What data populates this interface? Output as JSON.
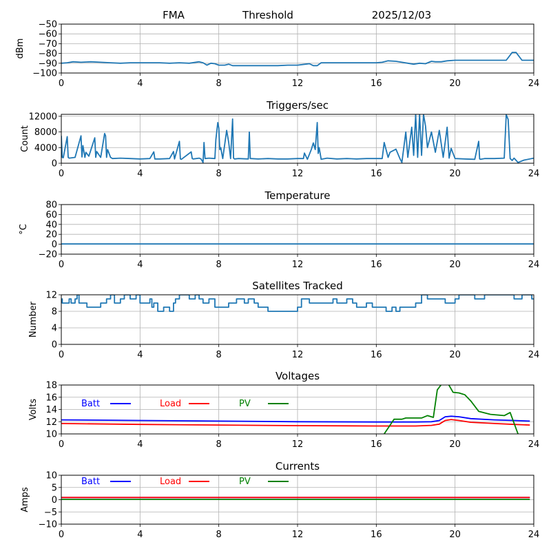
{
  "header": {
    "site": "FMA",
    "mode": "Threshold",
    "date": "2025/12/03"
  },
  "chart_data": [
    {
      "id": "signal",
      "type": "line",
      "title": "",
      "xlabel": "",
      "ylabel": "dBm",
      "xlim": [
        0,
        24
      ],
      "ylim": [
        -100,
        -50
      ],
      "xticks": [
        "0",
        "4",
        "8",
        "12",
        "16",
        "20",
        "24"
      ],
      "yticks": [
        "−50",
        "−60",
        "−70",
        "−80",
        "−90",
        "−100"
      ],
      "ytick_values": [
        -50,
        -60,
        -70,
        -80,
        -90,
        -100
      ],
      "grid": true,
      "series": [
        {
          "name": "signal",
          "color": "#1f77b4",
          "x": [
            0,
            0.3,
            0.6,
            1.0,
            1.5,
            2.0,
            2.5,
            3.0,
            3.5,
            4.0,
            4.5,
            5.0,
            5.5,
            6.0,
            6.5,
            7.0,
            7.2,
            7.4,
            7.6,
            7.8,
            8.0,
            8.3,
            8.5,
            8.7,
            9.0,
            9.5,
            10.0,
            10.5,
            11.0,
            11.5,
            12.0,
            12.4,
            12.6,
            12.8,
            13.0,
            13.2,
            13.5,
            14.0,
            14.5,
            15.0,
            15.5,
            16.0,
            16.3,
            16.6,
            17.0,
            17.3,
            17.6,
            17.9,
            18.2,
            18.5,
            18.8,
            19.0,
            19.3,
            19.6,
            20.0,
            20.5,
            21.0,
            21.5,
            22.0,
            22.6,
            22.9,
            23.1,
            23.4,
            23.7,
            24.0
          ],
          "y": [
            -90,
            -89.5,
            -88.5,
            -89,
            -88.5,
            -89,
            -89.5,
            -90,
            -89.5,
            -89.5,
            -89.5,
            -89.5,
            -90,
            -89.5,
            -90,
            -88.5,
            -89.5,
            -92,
            -90,
            -90.5,
            -92,
            -92,
            -91,
            -92.5,
            -92.5,
            -92.5,
            -92.5,
            -92.5,
            -92.5,
            -92,
            -92,
            -91,
            -90.5,
            -92.5,
            -92.5,
            -89.5,
            -89.5,
            -89.5,
            -89.5,
            -89.5,
            -89.5,
            -89.5,
            -89,
            -87.5,
            -88,
            -89,
            -90,
            -91,
            -90,
            -90.5,
            -88,
            -88.5,
            -88.5,
            -87.5,
            -87,
            -87,
            -87,
            -87,
            -87,
            -87,
            -79,
            -79,
            -87,
            -87,
            -87
          ]
        }
      ]
    },
    {
      "id": "triggers",
      "type": "line",
      "title": "Triggers/sec",
      "xlabel": "",
      "ylabel": "Count",
      "xlim": [
        0,
        24
      ],
      "ylim": [
        0,
        12500
      ],
      "xticks": [
        "0",
        "4",
        "8",
        "12",
        "16",
        "20",
        "24"
      ],
      "yticks": [
        "0",
        "4000",
        "8000",
        "12000"
      ],
      "ytick_values": [
        0,
        4000,
        8000,
        12000
      ],
      "grid": true,
      "series": [
        {
          "name": "triggers",
          "color": "#1f77b4",
          "x": [
            0,
            0.05,
            0.1,
            0.3,
            0.35,
            0.4,
            0.7,
            1.0,
            1.05,
            1.1,
            1.2,
            1.25,
            1.4,
            1.7,
            1.75,
            1.8,
            2.0,
            2.2,
            2.25,
            2.3,
            2.35,
            2.5,
            2.6,
            3.0,
            3.5,
            4.0,
            4.5,
            4.7,
            4.75,
            5.0,
            5.5,
            5.7,
            5.75,
            6.0,
            6.05,
            6.1,
            6.6,
            6.65,
            6.7,
            7.0,
            7.1,
            7.2,
            7.25,
            7.3,
            7.5,
            7.8,
            7.85,
            7.95,
            8.0,
            8.05,
            8.1,
            8.2,
            8.4,
            8.5,
            8.6,
            8.7,
            8.75,
            8.8,
            9.0,
            9.5,
            9.55,
            9.6,
            10.0,
            10.5,
            11.0,
            11.5,
            12.0,
            12.3,
            12.35,
            12.5,
            12.7,
            12.8,
            12.9,
            13.0,
            13.05,
            13.1,
            13.2,
            13.5,
            14.0,
            14.5,
            15.0,
            15.5,
            16.0,
            16.3,
            16.4,
            16.6,
            16.7,
            17.0,
            17.2,
            17.3,
            17.5,
            17.6,
            17.8,
            17.9,
            18.0,
            18.1,
            18.2,
            18.3,
            18.4,
            18.5,
            18.6,
            18.8,
            19.0,
            19.2,
            19.4,
            19.6,
            19.7,
            19.8,
            20.0,
            20.5,
            21.0,
            21.2,
            21.25,
            21.3,
            21.5,
            22.0,
            22.5,
            22.6,
            22.7,
            22.8,
            22.9,
            23.0,
            23.2,
            23.5,
            24.0
          ],
          "y": [
            7000,
            1500,
            1400,
            6800,
            1500,
            1300,
            1500,
            7000,
            1600,
            4500,
            1500,
            2800,
            1800,
            6500,
            1500,
            3000,
            1500,
            7600,
            7000,
            1500,
            3500,
            1500,
            1200,
            1300,
            1200,
            1100,
            1200,
            2900,
            1100,
            1100,
            1200,
            3000,
            1100,
            5600,
            1100,
            1000,
            2900,
            1200,
            1100,
            1300,
            1100,
            200,
            5300,
            1200,
            1300,
            1200,
            6000,
            10400,
            9000,
            3500,
            4000,
            1200,
            8400,
            5400,
            1200,
            11300,
            1300,
            1100,
            1200,
            1100,
            8000,
            1200,
            1100,
            1200,
            1100,
            1100,
            1200,
            1200,
            2600,
            1000,
            3500,
            5200,
            3500,
            10400,
            2500,
            4000,
            1000,
            1300,
            1100,
            1200,
            1100,
            1200,
            1200,
            1200,
            5300,
            1500,
            2800,
            3600,
            1200,
            200,
            8000,
            1500,
            9200,
            2000,
            12500,
            1500,
            12500,
            2000,
            12500,
            9500,
            4000,
            8000,
            2800,
            8400,
            1500,
            9200,
            1300,
            3800,
            1200,
            1100,
            1000,
            5600,
            1100,
            1000,
            1200,
            1200,
            1300,
            12400,
            11200,
            1200,
            700,
            1300,
            200,
            800,
            1300
          ]
        }
      ]
    },
    {
      "id": "temperature",
      "type": "line",
      "title": "Temperature",
      "xlabel": "",
      "ylabel": "°C",
      "xlim": [
        0,
        24
      ],
      "ylim": [
        -20,
        80
      ],
      "xticks": [
        "0",
        "4",
        "8",
        "12",
        "16",
        "20",
        "24"
      ],
      "yticks": [
        "80",
        "60",
        "40",
        "20",
        "0",
        "−20"
      ],
      "ytick_values": [
        80,
        60,
        40,
        20,
        0,
        -20
      ],
      "grid": true,
      "series": [
        {
          "name": "temperature",
          "color": "#1f77b4",
          "x": [
            0,
            24
          ],
          "y": [
            0.5,
            0.5
          ]
        }
      ]
    },
    {
      "id": "satellites",
      "type": "line",
      "title": "Satellites Tracked",
      "xlabel": "",
      "ylabel": "Number",
      "xlim": [
        0,
        24
      ],
      "ylim": [
        0,
        12
      ],
      "xticks": [
        "0",
        "4",
        "8",
        "12",
        "16",
        "20",
        "24"
      ],
      "yticks": [
        "12",
        "8",
        "4",
        "0"
      ],
      "ytick_values": [
        12,
        8,
        4,
        0
      ],
      "grid": true,
      "step": true,
      "series": [
        {
          "name": "satellites",
          "color": "#1f77b4",
          "x": [
            0,
            0.05,
            0.4,
            0.5,
            0.7,
            0.8,
            0.9,
            1.3,
            2.0,
            2.3,
            2.5,
            2.7,
            3.0,
            3.2,
            3.5,
            3.8,
            4.0,
            4.5,
            4.6,
            4.7,
            4.9,
            5.2,
            5.5,
            5.7,
            5.8,
            6.0,
            6.3,
            6.5,
            6.8,
            7.0,
            7.2,
            7.5,
            7.8,
            8.0,
            8.5,
            8.9,
            9.3,
            9.5,
            9.8,
            10.0,
            10.5,
            11.0,
            12.0,
            12.2,
            12.6,
            13.0,
            13.5,
            13.8,
            14.0,
            14.5,
            14.8,
            15.0,
            15.5,
            15.8,
            16.0,
            16.5,
            16.8,
            17.0,
            17.2,
            17.5,
            18.0,
            18.3,
            18.6,
            18.9,
            19.5,
            20.0,
            20.2,
            20.5,
            21.0,
            21.5,
            22.0,
            22.5,
            23.0,
            23.4,
            23.9,
            24.0
          ],
          "y": [
            11,
            10,
            11,
            10,
            11,
            12,
            10,
            9,
            10,
            11,
            12,
            10,
            11,
            12,
            11,
            12,
            10,
            11,
            9,
            10,
            8,
            9,
            8,
            10,
            11,
            12,
            12,
            11,
            12,
            11,
            10,
            11,
            9,
            9,
            10,
            11,
            10,
            11,
            10,
            9,
            8,
            8,
            9,
            11,
            10,
            10,
            10,
            11,
            10,
            11,
            10,
            9,
            10,
            9,
            9,
            8,
            9,
            8,
            9,
            9,
            10,
            12,
            11,
            11,
            10,
            11,
            12,
            12,
            11,
            12,
            12,
            12,
            11,
            12,
            11,
            11
          ]
        }
      ]
    },
    {
      "id": "voltages",
      "type": "line",
      "title": "Voltages",
      "xlabel": "",
      "ylabel": "Volts",
      "xlim": [
        0,
        24
      ],
      "ylim": [
        10,
        18
      ],
      "xticks": [
        "0",
        "4",
        "8",
        "12",
        "16",
        "20",
        "24"
      ],
      "yticks": [
        "18",
        "16",
        "14",
        "12",
        "10"
      ],
      "ytick_values": [
        18,
        16,
        14,
        12,
        10
      ],
      "grid": true,
      "legend": [
        {
          "label": "Batt",
          "color": "#0000ff"
        },
        {
          "label": "Load",
          "color": "#ff0000"
        },
        {
          "label": "PV",
          "color": "#008000"
        }
      ],
      "legend_placement": "top-left",
      "series": [
        {
          "name": "Batt",
          "color": "#0000ff",
          "x": [
            0,
            4,
            8,
            12,
            16,
            18,
            18.8,
            19.2,
            19.5,
            19.8,
            20.2,
            20.8,
            22,
            23.0,
            23.8
          ],
          "y": [
            12.3,
            12.2,
            12.1,
            12.0,
            11.95,
            11.95,
            12.0,
            12.2,
            12.8,
            12.9,
            12.8,
            12.5,
            12.3,
            12.2,
            12.1
          ]
        },
        {
          "name": "Load",
          "color": "#ff0000",
          "x": [
            0,
            4,
            8,
            12,
            16,
            18,
            18.8,
            19.2,
            19.5,
            19.8,
            20.2,
            20.8,
            22,
            23.0,
            23.8
          ],
          "y": [
            11.7,
            11.55,
            11.45,
            11.35,
            11.3,
            11.3,
            11.4,
            11.6,
            12.2,
            12.35,
            12.2,
            11.9,
            11.7,
            11.55,
            11.45
          ]
        },
        {
          "name": "PV",
          "color": "#008000",
          "x": [
            16.4,
            16.9,
            17.3,
            17.5,
            18.0,
            18.3,
            18.6,
            18.9,
            19.1,
            19.4,
            19.6,
            19.9,
            20.2,
            20.5,
            20.8,
            21.2,
            21.8,
            22.5,
            22.8,
            23.2
          ],
          "y": [
            10,
            12.4,
            12.4,
            12.6,
            12.6,
            12.6,
            13.0,
            12.7,
            17.2,
            18.5,
            18.5,
            16.8,
            16.7,
            16.4,
            15.4,
            13.7,
            13.2,
            13.0,
            13.5,
            10
          ]
        }
      ]
    },
    {
      "id": "currents",
      "type": "line",
      "title": "Currents",
      "xlabel": "",
      "ylabel": "Amps",
      "xlim": [
        0,
        24
      ],
      "ylim": [
        -10,
        10
      ],
      "xticks": [
        "0",
        "4",
        "8",
        "12",
        "16",
        "20",
        "24"
      ],
      "yticks": [
        "10",
        "5",
        "0",
        "−5",
        "−10"
      ],
      "ytick_values": [
        10,
        5,
        0,
        -5,
        -10
      ],
      "grid": true,
      "legend": [
        {
          "label": "Batt",
          "color": "#0000ff"
        },
        {
          "label": "Load",
          "color": "#ff0000"
        },
        {
          "label": "PV",
          "color": "#008000"
        }
      ],
      "legend_placement": "top-left",
      "series": [
        {
          "name": "Batt",
          "color": "#0000ff",
          "x": [
            0,
            23.8
          ],
          "y": [
            0.9,
            0.9
          ]
        },
        {
          "name": "Load",
          "color": "#ff0000",
          "x": [
            0,
            23.8
          ],
          "y": [
            0.9,
            0.9
          ]
        },
        {
          "name": "PV",
          "color": "#008000",
          "x": [
            0,
            23.8
          ],
          "y": [
            0.1,
            0.1
          ]
        }
      ]
    }
  ]
}
